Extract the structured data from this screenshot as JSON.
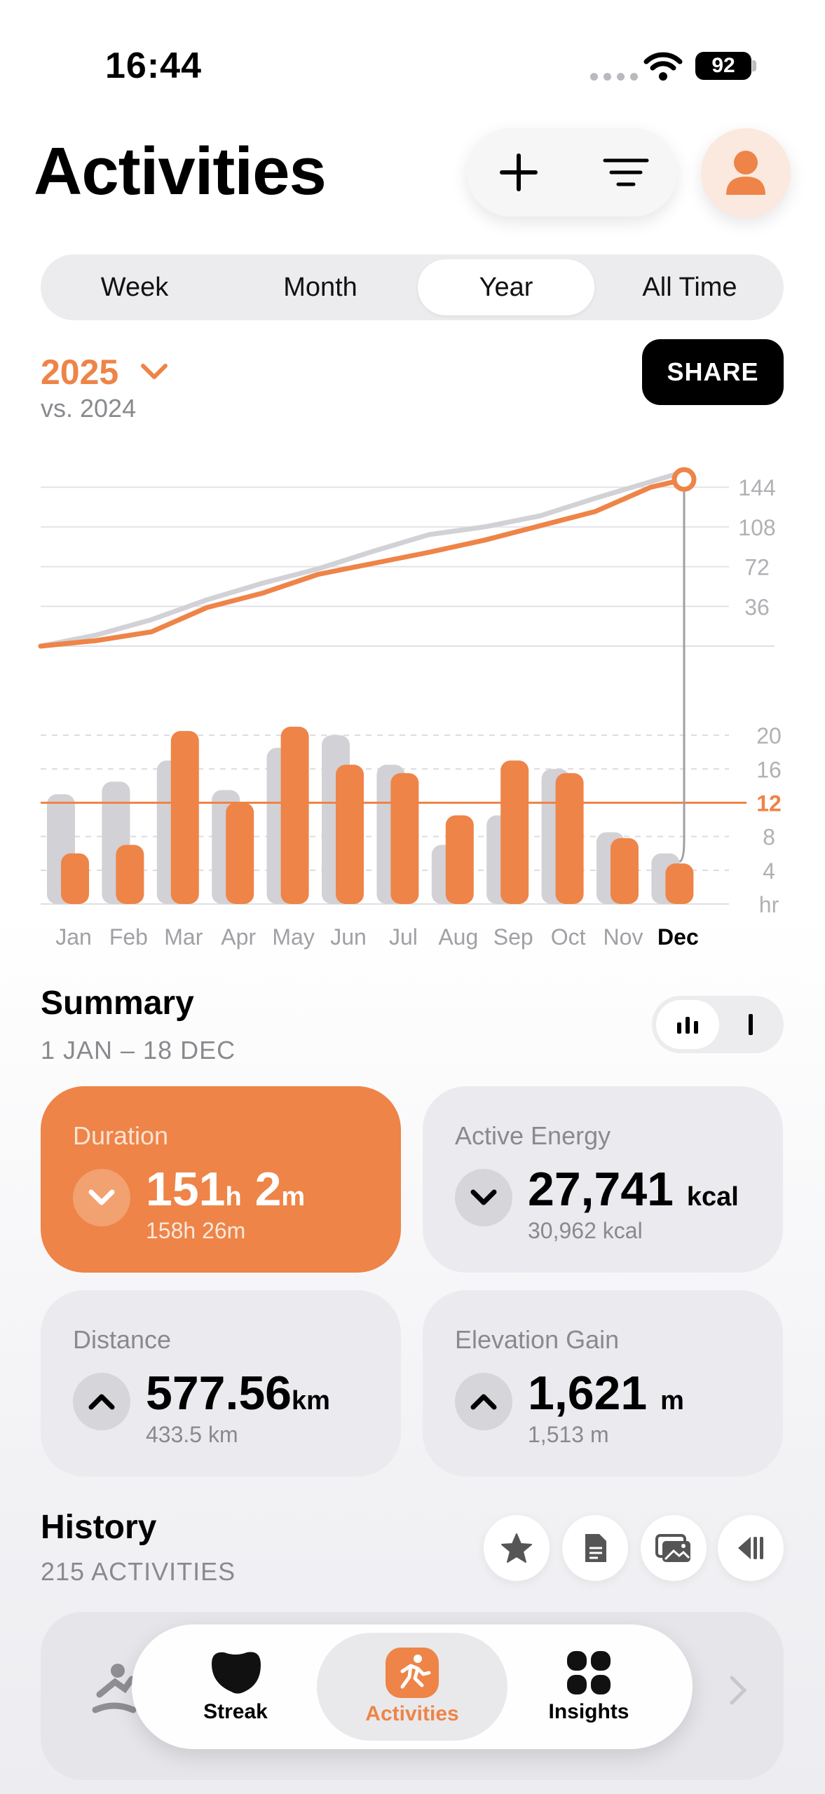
{
  "status_bar": {
    "time": "16:44",
    "battery": "92"
  },
  "header": {
    "title": "Activities"
  },
  "segments": [
    "Week",
    "Month",
    "Year",
    "All Time"
  ],
  "selected_segment": "Year",
  "year_selector": {
    "year": "2025",
    "compare": "vs. 2024"
  },
  "share_label": "SHARE",
  "chart_data": [
    {
      "type": "line",
      "series": [
        {
          "name": "2025",
          "color": "#ee8447",
          "x": [
            0,
            1,
            2,
            3,
            4,
            5,
            6,
            7,
            8,
            9,
            10,
            11,
            11.6
          ],
          "values": [
            0,
            5,
            13,
            35,
            48,
            65,
            75,
            85,
            96,
            109,
            122,
            144,
            151
          ]
        },
        {
          "name": "2024",
          "color": "#d1d1d6",
          "x": [
            0,
            1,
            2,
            3,
            4,
            5,
            6,
            7,
            8,
            9,
            10,
            11,
            11.6
          ],
          "values": [
            0,
            10,
            24,
            42,
            57,
            70,
            86,
            101,
            108,
            118,
            134,
            149,
            158
          ]
        }
      ],
      "y_ticks": [
        "144",
        "108",
        "72",
        "36"
      ],
      "ylim": [
        0,
        160
      ]
    },
    {
      "type": "bar",
      "categories": [
        "Jan",
        "Feb",
        "Mar",
        "Apr",
        "May",
        "Jun",
        "Jul",
        "Aug",
        "Sep",
        "Oct",
        "Nov",
        "Dec"
      ],
      "highlighted_category": "Dec",
      "series": [
        {
          "name": "2024",
          "color": "#d1d1d6",
          "values": [
            13,
            14.5,
            17,
            13.5,
            18.5,
            20,
            16.5,
            7,
            10.5,
            16,
            8.5,
            6
          ]
        },
        {
          "name": "2025",
          "color": "#ee8447",
          "values": [
            6,
            7,
            20.5,
            12,
            21,
            16.5,
            15.5,
            10.5,
            17,
            15.5,
            7.8,
            4.8
          ]
        }
      ],
      "average_line": {
        "value": 12,
        "label": "12",
        "color": "#ee8447"
      },
      "y_ticks": [
        "20",
        "16",
        "12",
        "8",
        "4",
        "hr"
      ],
      "ylim": [
        0,
        22
      ]
    }
  ],
  "summary": {
    "title": "Summary",
    "range": "1 JAN – 18 DEC",
    "cards": [
      {
        "label": "Duration",
        "value_a": "151",
        "unit_a": "h",
        "value_b": "2",
        "unit_b": "m",
        "compare": "158h 26m",
        "direction": "down"
      },
      {
        "label": "Active Energy",
        "value_a": "27,741",
        "unit_a": "kcal",
        "compare": "30,962 kcal",
        "direction": "down"
      },
      {
        "label": "Distance",
        "value_a": "577.56",
        "unit_a": "km",
        "compare": "433.5 km",
        "direction": "up"
      },
      {
        "label": "Elevation Gain",
        "value_a": "1,621",
        "unit_a": "m",
        "compare": "1,513 m",
        "direction": "up"
      }
    ]
  },
  "history": {
    "title": "History",
    "count": "215 ACTIVITIES"
  },
  "tabs": [
    {
      "label": "Streak",
      "icon": "streak-icon"
    },
    {
      "label": "Activities",
      "icon": "running-icon"
    },
    {
      "label": "Insights",
      "icon": "grid-icon"
    }
  ],
  "accent_color": "#ee8447"
}
